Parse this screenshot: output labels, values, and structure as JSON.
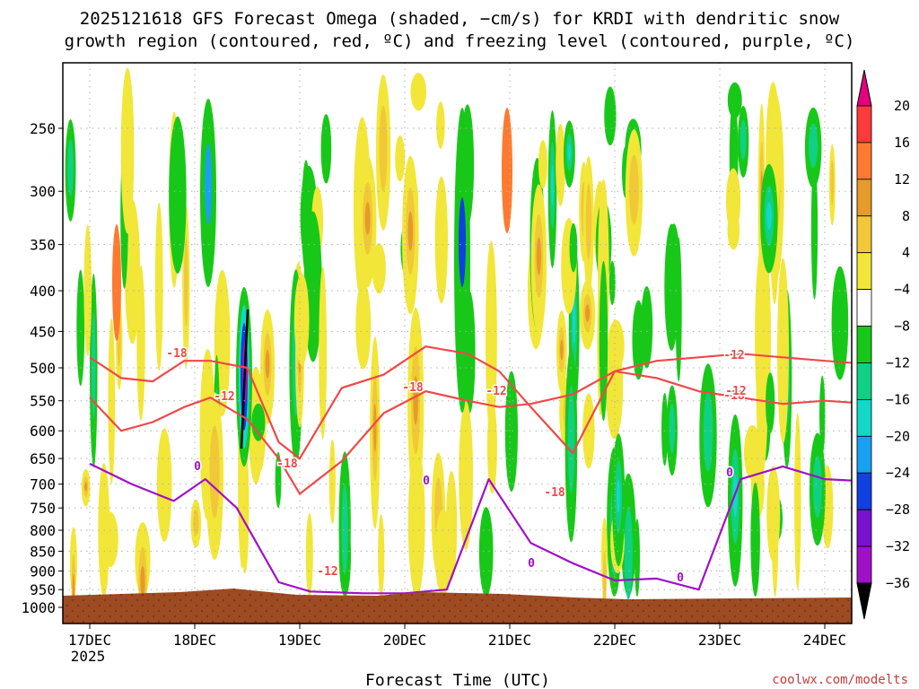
{
  "chart_data": {
    "type": "heatmap",
    "title_line1": "2025121618 GFS Forecast Omega (shaded, −cm/s) for KRDI with dendritic snow",
    "title_line2": "growth region (contoured, red, ºC) and freezing level (contoured, purple, ºC)",
    "xlabel": "Forecast Time (UTC)",
    "ylabel": "",
    "x_ticks": [
      "17DEC",
      "18DEC",
      "19DEC",
      "20DEC",
      "21DEC",
      "22DEC",
      "23DEC",
      "24DEC"
    ],
    "x_year": "2025",
    "y_ticks": [
      250,
      300,
      350,
      400,
      450,
      500,
      550,
      600,
      650,
      700,
      750,
      800,
      850,
      900,
      950,
      1000
    ],
    "ylim": [
      1000,
      200
    ],
    "colorbar": {
      "labels": [
        "20",
        "16",
        "12",
        "8",
        "4",
        "−4",
        "−8",
        "−12",
        "−16",
        "−20",
        "−24",
        "−28",
        "−32",
        "−36"
      ],
      "colors": [
        "#e5007f",
        "#ff3a3a",
        "#ff7a2e",
        "#e69a28",
        "#f0c838",
        "#f2e638",
        "#ffffff",
        "#18c818",
        "#10d084",
        "#12d8c8",
        "#1aa0f0",
        "#1040e0",
        "#7a10d0",
        "#a010c8",
        "#a8a8a8",
        "#000000"
      ]
    },
    "contour_labels": {
      "dgz": [
        "-18",
        "-12",
        "-18",
        "-12",
        "-18",
        "-12",
        "-18",
        "-12",
        "-18",
        "-12"
      ],
      "freezing": [
        "0",
        "0",
        "0",
        "0",
        "0"
      ]
    },
    "series": [
      {
        "name": "-12°C contour (dendritic zone bottom)",
        "x_days": [
          0.0,
          0.3,
          0.6,
          0.9,
          1.15,
          1.5,
          1.8,
          2.0,
          2.4,
          2.8,
          3.2,
          3.6,
          3.9,
          4.2,
          4.6,
          5.0,
          5.4,
          5.8,
          6.2,
          6.6,
          7.0,
          7.45
        ],
        "pressure": [
          545,
          600,
          585,
          560,
          545,
          580,
          650,
          720,
          655,
          570,
          535,
          550,
          560,
          555,
          540,
          505,
          515,
          535,
          545,
          555,
          550,
          555
        ]
      },
      {
        "name": "-18°C contour (dendritic zone top)",
        "x_days": [
          0.0,
          0.3,
          0.6,
          0.9,
          1.15,
          1.5,
          1.8,
          2.0,
          2.4,
          2.8,
          3.2,
          3.6,
          3.9,
          4.2,
          4.6,
          5.0,
          5.4,
          5.8,
          6.2,
          6.6,
          7.0,
          7.45
        ],
        "pressure": [
          485,
          515,
          520,
          490,
          490,
          500,
          620,
          650,
          530,
          510,
          470,
          480,
          505,
          560,
          640,
          505,
          490,
          485,
          480,
          485,
          490,
          495
        ]
      },
      {
        "name": "0°C freezing level",
        "x_days": [
          0.0,
          0.4,
          0.8,
          1.1,
          1.4,
          1.8,
          2.1,
          2.6,
          3.0,
          3.4,
          3.8,
          4.2,
          4.6,
          5.0,
          5.4,
          5.8,
          6.2,
          6.6,
          7.0,
          7.45
        ],
        "pressure": [
          660,
          700,
          735,
          690,
          750,
          930,
          955,
          960,
          960,
          950,
          690,
          830,
          880,
          925,
          920,
          950,
          690,
          665,
          690,
          695
        ]
      }
    ]
  },
  "watermark": "coolwx.com/modelts"
}
